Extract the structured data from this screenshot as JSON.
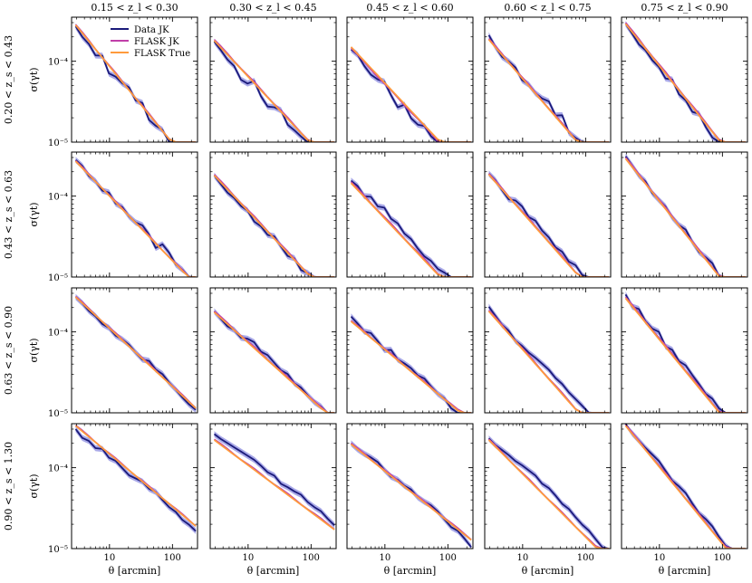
{
  "chart_data": {
    "type": "line",
    "layout": "grid-4x5",
    "col_titles": [
      "0.15 < z_l < 0.30",
      "0.30 < z_l < 0.45",
      "0.45 < z_l < 0.60",
      "0.60 < z_l < 0.75",
      "0.75 < z_l < 0.90"
    ],
    "row_labels": [
      "0.20 < z_s < 0.43",
      "0.43 < z_s < 0.63",
      "0.63 < z_s < 0.90",
      "0.90 < z_s < 1.30"
    ],
    "xlabel": "θ [arcmin]",
    "ylabel": "σ(γt)",
    "xscale": "log",
    "yscale": "log",
    "xlim": [
      2.5,
      250
    ],
    "ylim": [
      1e-05,
      0.00035
    ],
    "x_ticks": [
      10,
      100
    ],
    "x_tick_labels": [
      "10",
      "100"
    ],
    "y_ticks": [
      1e-05,
      0.0001
    ],
    "y_tick_labels": [
      "10⁻⁵",
      "10⁻⁴"
    ],
    "legend": {
      "location": "top-right of first panel",
      "entries": [
        {
          "label": "Data JK",
          "color": "#1a1a7a"
        },
        {
          "label": "FLASK JK",
          "color": "#c03fa8"
        },
        {
          "label": "FLASK True",
          "color": "#ff9a3c"
        }
      ]
    },
    "x": [
      2.9,
      3.7,
      4.7,
      6.0,
      7.7,
      9.8,
      12.5,
      16.0,
      20.4,
      26.1,
      33.3,
      42.5,
      54.3,
      69.3,
      88.5,
      113,
      144,
      184,
      235
    ],
    "colors": {
      "data": "#1a1a7a",
      "data_band": "#8c8ce0",
      "flask_jk": "#c03fa8",
      "flask_true": "#ff9a3c"
    },
    "panels": [
      {
        "row": 0,
        "col": 0,
        "flask_true_y0": 0.00028,
        "slope": -0.95,
        "flask_jk_y0": 0.000285,
        "data_y0": 0.00027,
        "noise": [
          0,
          -0.03,
          -0.02,
          -0.06,
          0.04,
          -0.08,
          -0.02,
          0.0,
          0.05,
          -0.01,
          0.06,
          -0.05,
          -0.02,
          0.03,
          -0.04,
          -0.09,
          -0.05,
          -0.03,
          -0.06
        ]
      },
      {
        "row": 0,
        "col": 1,
        "flask_true_y0": 0.00018,
        "slope": -0.83,
        "flask_jk_y0": 0.000185,
        "data_y0": 0.000175,
        "noise": [
          0,
          -0.02,
          -0.05,
          -0.04,
          -0.12,
          -0.08,
          0.04,
          -0.06,
          -0.1,
          -0.02,
          0.03,
          -0.06,
          -0.04,
          -0.03,
          -0.07,
          -0.04,
          -0.03,
          -0.05,
          -0.09
        ]
      },
      {
        "row": 0,
        "col": 2,
        "flask_true_y0": 0.00015,
        "slope": -0.83,
        "flask_jk_y0": 0.000145,
        "data_y0": 0.00014,
        "noise": [
          0,
          0.02,
          -0.03,
          -0.05,
          -0.02,
          0.04,
          -0.04,
          -0.1,
          0.02,
          -0.06,
          -0.05,
          0.02,
          -0.02,
          -0.06,
          -0.05,
          -0.02,
          -0.06,
          -0.08,
          -0.12
        ]
      },
      {
        "row": 0,
        "col": 3,
        "flask_true_y0": 0.000185,
        "slope": -0.9,
        "flask_jk_y0": 0.00019,
        "data_y0": 0.00021,
        "noise": [
          0,
          -0.05,
          -0.08,
          -0.04,
          -0.02,
          -0.08,
          -0.04,
          -0.05,
          -0.02,
          0.04,
          -0.04,
          0.06,
          -0.06,
          -0.03,
          0.0,
          -0.04,
          -0.05,
          -0.06,
          -0.09
        ]
      },
      {
        "row": 0,
        "col": 4,
        "flask_true_y0": 0.00029,
        "slope": -0.97,
        "flask_jk_y0": 0.0003,
        "data_y0": 0.00029,
        "noise": [
          0,
          -0.02,
          -0.05,
          -0.02,
          -0.04,
          -0.02,
          -0.06,
          0.03,
          -0.05,
          -0.02,
          -0.06,
          0.02,
          -0.04,
          -0.07,
          -0.02,
          -0.05,
          -0.06,
          -0.03,
          -0.06
        ]
      },
      {
        "row": 1,
        "col": 0,
        "flask_true_y0": 0.00027,
        "slope": -0.8,
        "flask_jk_y0": 0.000275,
        "data_y0": 0.00028,
        "noise": [
          0,
          0.01,
          -0.03,
          -0.01,
          -0.04,
          0.02,
          -0.03,
          0.01,
          -0.02,
          -0.01,
          0.04,
          0.01,
          -0.07,
          0.06,
          0.04,
          -0.02,
          0.0,
          -0.02,
          -0.04
        ]
      },
      {
        "row": 1,
        "col": 1,
        "flask_true_y0": 0.00018,
        "slope": -0.82,
        "flask_jk_y0": 0.000185,
        "data_y0": 0.00018,
        "noise": [
          0,
          -0.02,
          -0.04,
          -0.02,
          -0.03,
          0.0,
          -0.05,
          -0.02,
          -0.04,
          0.03,
          -0.01,
          -0.04,
          0.02,
          -0.04,
          0.01,
          0.03,
          -0.02,
          -0.03,
          -0.05
        ]
      },
      {
        "row": 1,
        "col": 2,
        "flask_true_y0": 0.000145,
        "slope": -0.82,
        "flask_jk_y0": 0.00015,
        "data_y0": 0.000155,
        "noise": [
          0,
          0.02,
          -0.02,
          0.06,
          0.03,
          0.1,
          0.05,
          0.08,
          0.04,
          0.06,
          0.03,
          0.02,
          0.05,
          0.04,
          0.08,
          0.05,
          0.04,
          0.03,
          0.0
        ]
      },
      {
        "row": 1,
        "col": 3,
        "flask_true_y0": 0.000185,
        "slope": -0.88,
        "flask_jk_y0": 0.00019,
        "data_y0": 0.00019,
        "noise": [
          0,
          0.01,
          -0.02,
          -0.04,
          0.04,
          0.06,
          0.02,
          0.07,
          0.04,
          0.05,
          0.02,
          0.06,
          0.03,
          0.08,
          0.05,
          0.04,
          0.02,
          0.03,
          0.0
        ]
      },
      {
        "row": 1,
        "col": 4,
        "flask_true_y0": 0.00029,
        "slope": -0.98,
        "flask_jk_y0": 0.0003,
        "data_y0": 0.00031,
        "noise": [
          0,
          -0.01,
          -0.03,
          0.0,
          -0.04,
          -0.02,
          0.0,
          -0.03,
          -0.02,
          0.03,
          -0.02,
          -0.04,
          0.0,
          0.03,
          -0.03,
          0.0,
          0.04,
          -0.02,
          -0.05
        ]
      },
      {
        "row": 2,
        "col": 0,
        "flask_true_y0": 0.00027,
        "slope": -0.72,
        "flask_jk_y0": 0.000275,
        "data_y0": 0.00027,
        "noise": [
          0,
          0.0,
          -0.02,
          -0.01,
          -0.03,
          0.0,
          -0.02,
          0.01,
          0.02,
          0.0,
          -0.01,
          0.05,
          0.02,
          0.04,
          0.01,
          0.0,
          -0.02,
          -0.03,
          -0.02
        ]
      },
      {
        "row": 2,
        "col": 1,
        "flask_true_y0": 0.000175,
        "slope": -0.7,
        "flask_jk_y0": 0.00018,
        "data_y0": 0.00018,
        "noise": [
          0,
          -0.02,
          -0.04,
          -0.01,
          -0.03,
          0.03,
          0.06,
          0.02,
          0.05,
          0.03,
          0.01,
          0.04,
          0.0,
          0.02,
          0.0,
          -0.01,
          0.01,
          -0.02,
          -0.03
        ]
      },
      {
        "row": 2,
        "col": 2,
        "flask_true_y0": 0.000135,
        "slope": -0.65,
        "flask_jk_y0": 0.000138,
        "data_y0": 0.000155,
        "noise": [
          0,
          -0.02,
          -0.05,
          0.0,
          -0.03,
          -0.07,
          0.0,
          -0.05,
          -0.03,
          -0.02,
          -0.04,
          -0.01,
          -0.04,
          -0.06,
          -0.05,
          -0.1,
          -0.12,
          -0.13,
          -0.12
        ]
      },
      {
        "row": 2,
        "col": 3,
        "flask_true_y0": 0.00018,
        "slope": -0.88,
        "flask_jk_y0": 0.000185,
        "data_y0": 0.000205,
        "noise": [
          0,
          -0.02,
          -0.04,
          -0.02,
          -0.05,
          -0.02,
          -0.01,
          0.02,
          0.04,
          0.06,
          0.05,
          0.07,
          0.06,
          0.07,
          0.08,
          0.07,
          0.06,
          0.04,
          0.02
        ]
      },
      {
        "row": 2,
        "col": 4,
        "flask_true_y0": 0.00026,
        "slope": -0.95,
        "flask_jk_y0": 0.00027,
        "data_y0": 0.00029,
        "noise": [
          0,
          -0.05,
          0.02,
          -0.03,
          -0.02,
          0.04,
          -0.04,
          0.02,
          -0.02,
          0.03,
          0.01,
          0.0,
          -0.02,
          0.02,
          0.0,
          -0.03,
          0.01,
          0.02,
          -0.02
        ]
      },
      {
        "row": 3,
        "col": 0,
        "flask_true_y0": 0.00033,
        "slope": -0.65,
        "flask_jk_y0": 0.000335,
        "data_y0": 0.0003,
        "noise": [
          0,
          -0.04,
          -0.01,
          -0.03,
          0.03,
          -0.01,
          0.02,
          0.0,
          -0.02,
          0.01,
          0.04,
          0.02,
          0.05,
          0.02,
          0.0,
          0.01,
          -0.02,
          -0.01,
          -0.02
        ]
      },
      {
        "row": 3,
        "col": 1,
        "flask_true_y0": 0.00022,
        "slope": -0.58,
        "flask_jk_y0": 0.000225,
        "data_y0": 0.00026,
        "noise": [
          0,
          0.0,
          0.01,
          0.02,
          0.03,
          0.04,
          0.05,
          0.04,
          0.02,
          0.04,
          0.0,
          0.02,
          0.03,
          0.05,
          0.02,
          0.02,
          0.03,
          0.0,
          -0.02
        ]
      },
      {
        "row": 3,
        "col": 2,
        "flask_true_y0": 0.000195,
        "slope": -0.62,
        "flask_jk_y0": 0.0002,
        "data_y0": 0.0002,
        "noise": [
          0,
          -0.01,
          0.0,
          0.02,
          0.03,
          0.0,
          -0.02,
          0.01,
          0.0,
          0.02,
          -0.01,
          0.0,
          0.02,
          0.01,
          -0.02,
          -0.05,
          -0.03,
          -0.06,
          -0.1
        ]
      },
      {
        "row": 3,
        "col": 3,
        "flask_true_y0": 0.00022,
        "slope": -0.78,
        "flask_jk_y0": 0.000225,
        "data_y0": 0.00023,
        "noise": [
          0,
          0.0,
          0.02,
          0.04,
          0.05,
          0.08,
          0.1,
          0.12,
          0.1,
          0.13,
          0.12,
          0.1,
          0.12,
          0.1,
          0.09,
          0.1,
          0.08,
          0.06,
          0.03
        ]
      },
      {
        "row": 3,
        "col": 4,
        "flask_true_y0": 0.00033,
        "slope": -0.95,
        "flask_jk_y0": 0.00034,
        "data_y0": 0.00035,
        "noise": [
          0,
          -0.02,
          -0.01,
          0.0,
          0.02,
          0.04,
          0.02,
          0.0,
          0.03,
          0.05,
          0.02,
          0.0,
          0.03,
          0.04,
          0.01,
          0.0,
          -0.02,
          0.02,
          0.0
        ]
      }
    ]
  }
}
